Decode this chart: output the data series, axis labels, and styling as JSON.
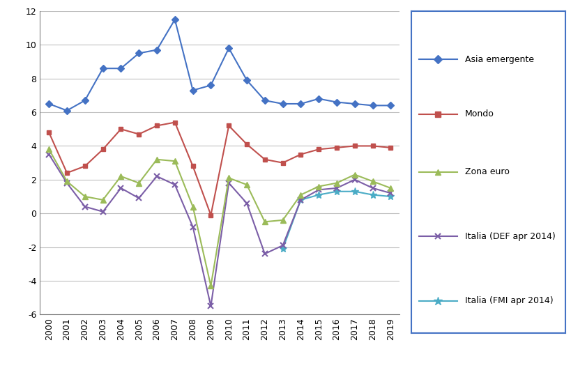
{
  "years": [
    2000,
    2001,
    2002,
    2003,
    2004,
    2005,
    2006,
    2007,
    2008,
    2009,
    2010,
    2011,
    2012,
    2013,
    2014,
    2015,
    2016,
    2017,
    2018,
    2019
  ],
  "asia_emergente": [
    6.5,
    6.1,
    6.7,
    8.6,
    8.6,
    9.5,
    9.7,
    11.5,
    7.3,
    7.6,
    9.8,
    7.9,
    6.7,
    6.5,
    6.5,
    6.8,
    6.6,
    6.5,
    6.4,
    6.4
  ],
  "mondo": [
    4.8,
    2.4,
    2.8,
    3.8,
    5.0,
    4.7,
    5.2,
    5.4,
    2.8,
    -0.1,
    5.2,
    4.1,
    3.2,
    3.0,
    3.5,
    3.8,
    3.9,
    4.0,
    4.0,
    3.9
  ],
  "zona_euro": [
    3.8,
    1.9,
    1.0,
    0.8,
    2.2,
    1.8,
    3.2,
    3.1,
    0.4,
    -4.3,
    2.1,
    1.7,
    -0.5,
    -0.4,
    1.1,
    1.6,
    1.8,
    2.3,
    1.9,
    1.5
  ],
  "italia_def": [
    3.5,
    1.8,
    0.4,
    0.1,
    1.5,
    0.9,
    2.2,
    1.7,
    -0.8,
    -5.5,
    1.8,
    0.6,
    -2.4,
    -1.9,
    0.8,
    1.4,
    1.5,
    2.0,
    1.5,
    1.2
  ],
  "italia_fmi": [
    null,
    null,
    null,
    null,
    null,
    null,
    null,
    null,
    null,
    null,
    null,
    null,
    null,
    -2.1,
    0.8,
    1.1,
    1.3,
    1.3,
    1.1,
    1.0
  ],
  "colors": {
    "asia_emergente": "#4472C4",
    "mondo": "#C0504D",
    "zona_euro": "#9BBB59",
    "italia_def": "#7B5EA7",
    "italia_fmi": "#4BACC6"
  },
  "ylim": [
    -6,
    12
  ],
  "yticks": [
    -6,
    -4,
    -2,
    0,
    2,
    4,
    6,
    8,
    10,
    12
  ],
  "legend_labels": [
    "Asia emergente",
    "Mondo",
    "Zona euro",
    "Italia (DEF apr 2014)",
    "Italia (FMI apr 2014)"
  ],
  "background_color": "#FFFFFF",
  "plot_bg_color": "#FFFFFF",
  "grid_color": "#C0C0C0",
  "legend_border_color": "#4472C4"
}
